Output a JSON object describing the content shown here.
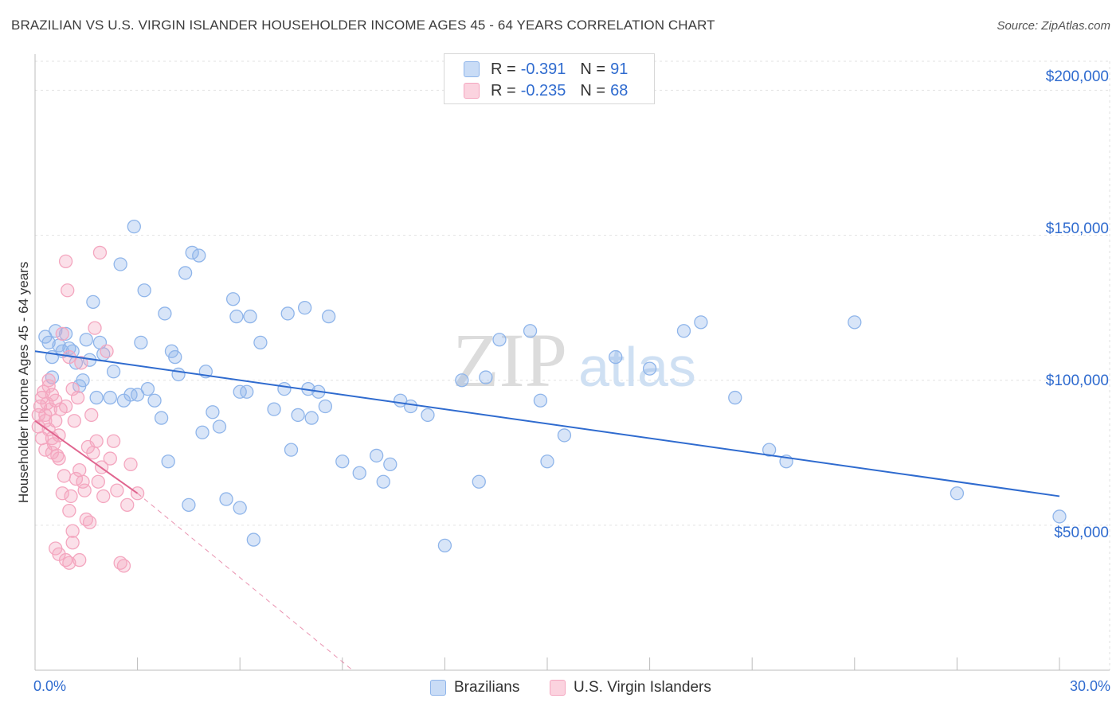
{
  "chart_data": {
    "type": "scatter",
    "title": "BRAZILIAN VS U.S. VIRGIN ISLANDER HOUSEHOLDER INCOME AGES 45 - 64 YEARS CORRELATION CHART",
    "source": "Source: ZipAtlas.com",
    "xlabel": "",
    "ylabel": "Householder Income Ages 45 - 64 years",
    "xlim": [
      0,
      30
    ],
    "ylim": [
      0,
      210000
    ],
    "x_tick_labels": [
      "0.0%",
      "30.0%"
    ],
    "y_ticks": [
      50000,
      100000,
      150000,
      200000
    ],
    "y_tick_labels": [
      "$50,000",
      "$100,000",
      "$150,000",
      "$200,000"
    ],
    "grid": true,
    "watermark": "ZIPatlas",
    "legend": {
      "position": "top-center",
      "entries": [
        {
          "name": "Brazilians",
          "r_label": "R =",
          "r": "-0.391",
          "n_label": "N =",
          "n": "91",
          "color": "#8fb5ea"
        },
        {
          "name": "U.S. Virgin Islanders",
          "r_label": "R =",
          "r": "-0.235",
          "n_label": "N =",
          "n": "68",
          "color": "#f4a6bf"
        }
      ]
    },
    "series": [
      {
        "name": "Brazilians",
        "color": "#8fb5ea",
        "line_color": "#2f6bcf",
        "trend": {
          "x": [
            0,
            30
          ],
          "y": [
            110000,
            60000
          ]
        },
        "points": [
          [
            0.3,
            115000
          ],
          [
            0.4,
            113000
          ],
          [
            0.5,
            108000
          ],
          [
            0.6,
            117000
          ],
          [
            0.7,
            112000
          ],
          [
            0.8,
            110000
          ],
          [
            0.9,
            116000
          ],
          [
            1.0,
            111000
          ],
          [
            1.1,
            110000
          ],
          [
            1.2,
            106000
          ],
          [
            1.3,
            98000
          ],
          [
            1.4,
            100000
          ],
          [
            1.5,
            114000
          ],
          [
            1.6,
            107000
          ],
          [
            1.7,
            127000
          ],
          [
            1.8,
            94000
          ],
          [
            1.9,
            113000
          ],
          [
            2.2,
            94000
          ],
          [
            2.3,
            103000
          ],
          [
            2.5,
            140000
          ],
          [
            2.6,
            93000
          ],
          [
            2.8,
            95000
          ],
          [
            2.9,
            153000
          ],
          [
            3.0,
            95000
          ],
          [
            3.1,
            113000
          ],
          [
            3.2,
            131000
          ],
          [
            3.3,
            97000
          ],
          [
            3.5,
            93000
          ],
          [
            3.7,
            87000
          ],
          [
            3.8,
            123000
          ],
          [
            3.9,
            72000
          ],
          [
            4.0,
            110000
          ],
          [
            4.1,
            108000
          ],
          [
            4.2,
            102000
          ],
          [
            4.4,
            137000
          ],
          [
            4.5,
            57000
          ],
          [
            4.6,
            144000
          ],
          [
            4.8,
            143000
          ],
          [
            4.9,
            82000
          ],
          [
            5.0,
            103000
          ],
          [
            5.2,
            89000
          ],
          [
            5.4,
            84000
          ],
          [
            5.6,
            59000
          ],
          [
            5.8,
            128000
          ],
          [
            5.9,
            122000
          ],
          [
            6.0,
            56000
          ],
          [
            6.2,
            96000
          ],
          [
            6.3,
            122000
          ],
          [
            6.4,
            45000
          ],
          [
            6.6,
            113000
          ],
          [
            7.0,
            90000
          ],
          [
            7.3,
            97000
          ],
          [
            7.4,
            123000
          ],
          [
            7.5,
            76000
          ],
          [
            7.7,
            88000
          ],
          [
            7.9,
            125000
          ],
          [
            8.1,
            87000
          ],
          [
            8.3,
            96000
          ],
          [
            8.5,
            91000
          ],
          [
            8.6,
            122000
          ],
          [
            9.0,
            72000
          ],
          [
            9.5,
            68000
          ],
          [
            10.2,
            65000
          ],
          [
            10.0,
            74000
          ],
          [
            10.4,
            71000
          ],
          [
            10.7,
            93000
          ],
          [
            11.0,
            91000
          ],
          [
            11.5,
            88000
          ],
          [
            12.0,
            43000
          ],
          [
            12.5,
            100000
          ],
          [
            13.0,
            65000
          ],
          [
            13.2,
            101000
          ],
          [
            13.6,
            114000
          ],
          [
            14.5,
            117000
          ],
          [
            14.8,
            93000
          ],
          [
            15.0,
            72000
          ],
          [
            15.5,
            81000
          ],
          [
            17.0,
            108000
          ],
          [
            18.0,
            104000
          ],
          [
            19.0,
            117000
          ],
          [
            19.5,
            120000
          ],
          [
            20.5,
            94000
          ],
          [
            21.5,
            76000
          ],
          [
            22.0,
            72000
          ],
          [
            24.0,
            120000
          ],
          [
            27.0,
            61000
          ],
          [
            30.0,
            53000
          ],
          [
            0.5,
            101000
          ],
          [
            2.0,
            109000
          ],
          [
            6.0,
            96000
          ],
          [
            8.0,
            97000
          ]
        ]
      },
      {
        "name": "U.S. Virgin Islanders",
        "color": "#f4a6bf",
        "line_color": "#e0658f",
        "trend": {
          "x": [
            0,
            3.0
          ],
          "y": [
            86000,
            61000
          ]
        },
        "trend_extension": {
          "x": [
            3.0,
            9.3
          ],
          "y": [
            61000,
            0
          ]
        },
        "points": [
          [
            0.1,
            84000
          ],
          [
            0.1,
            88000
          ],
          [
            0.15,
            91000
          ],
          [
            0.2,
            94000
          ],
          [
            0.2,
            80000
          ],
          [
            0.25,
            96000
          ],
          [
            0.3,
            86000
          ],
          [
            0.3,
            76000
          ],
          [
            0.35,
            92000
          ],
          [
            0.4,
            100000
          ],
          [
            0.4,
            83000
          ],
          [
            0.45,
            90000
          ],
          [
            0.5,
            75000
          ],
          [
            0.5,
            95000
          ],
          [
            0.55,
            78000
          ],
          [
            0.6,
            86000
          ],
          [
            0.6,
            93000
          ],
          [
            0.65,
            74000
          ],
          [
            0.7,
            81000
          ],
          [
            0.7,
            73000
          ],
          [
            0.75,
            90000
          ],
          [
            0.8,
            61000
          ],
          [
            0.8,
            116000
          ],
          [
            0.85,
            67000
          ],
          [
            0.9,
            141000
          ],
          [
            0.9,
            91000
          ],
          [
            0.95,
            131000
          ],
          [
            1.0,
            55000
          ],
          [
            1.0,
            108000
          ],
          [
            1.05,
            60000
          ],
          [
            1.1,
            97000
          ],
          [
            1.1,
            48000
          ],
          [
            1.15,
            86000
          ],
          [
            1.2,
            66000
          ],
          [
            1.25,
            94000
          ],
          [
            1.3,
            69000
          ],
          [
            1.35,
            106000
          ],
          [
            1.4,
            65000
          ],
          [
            1.45,
            62000
          ],
          [
            1.5,
            52000
          ],
          [
            1.55,
            77000
          ],
          [
            1.6,
            51000
          ],
          [
            1.65,
            88000
          ],
          [
            1.7,
            75000
          ],
          [
            1.75,
            118000
          ],
          [
            1.8,
            79000
          ],
          [
            1.85,
            65000
          ],
          [
            1.9,
            144000
          ],
          [
            1.95,
            70000
          ],
          [
            2.0,
            60000
          ],
          [
            2.1,
            110000
          ],
          [
            2.2,
            73000
          ],
          [
            2.3,
            79000
          ],
          [
            2.4,
            62000
          ],
          [
            2.5,
            37000
          ],
          [
            2.6,
            36000
          ],
          [
            2.7,
            57000
          ],
          [
            2.8,
            71000
          ],
          [
            3.0,
            61000
          ],
          [
            0.6,
            42000
          ],
          [
            0.7,
            40000
          ],
          [
            0.9,
            38000
          ],
          [
            1.0,
            37000
          ],
          [
            1.1,
            44000
          ],
          [
            0.3,
            88000
          ],
          [
            0.4,
            98000
          ],
          [
            0.5,
            80000
          ],
          [
            1.3,
            38000
          ]
        ]
      }
    ]
  }
}
